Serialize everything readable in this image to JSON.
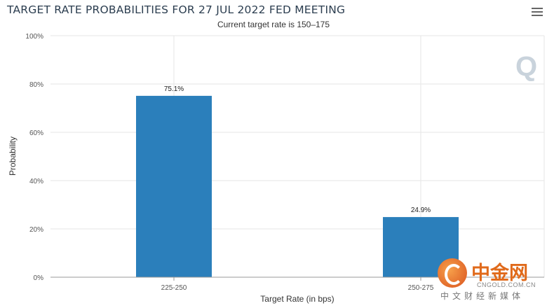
{
  "header": {
    "title": "TARGET RATE PROBABILITIES FOR 27 JUL 2022 FED MEETING",
    "subtitle": "Current target rate is 150–175",
    "menu_icon": "hamburger-menu-icon"
  },
  "chart_data": {
    "type": "bar",
    "categories": [
      "225-250",
      "250-275"
    ],
    "values": [
      75.1,
      24.9
    ],
    "data_labels": [
      "75.1%",
      "24.9%"
    ],
    "xlabel": "Target Rate (in bps)",
    "ylabel": "Probability",
    "ylim": [
      0,
      100
    ],
    "yticks": [
      0,
      20,
      40,
      60,
      80,
      100
    ],
    "ytick_labels": [
      "0%",
      "20%",
      "40%",
      "60%",
      "80%",
      "100%"
    ],
    "grid": true,
    "bar_color": "#2b7fbb"
  },
  "watermark": {
    "logo_letter": "Q",
    "site_name_cn": "中金网",
    "site_url": "CNGOLD.COM.CN",
    "site_tagline_cn": "中文财经新媒体"
  }
}
